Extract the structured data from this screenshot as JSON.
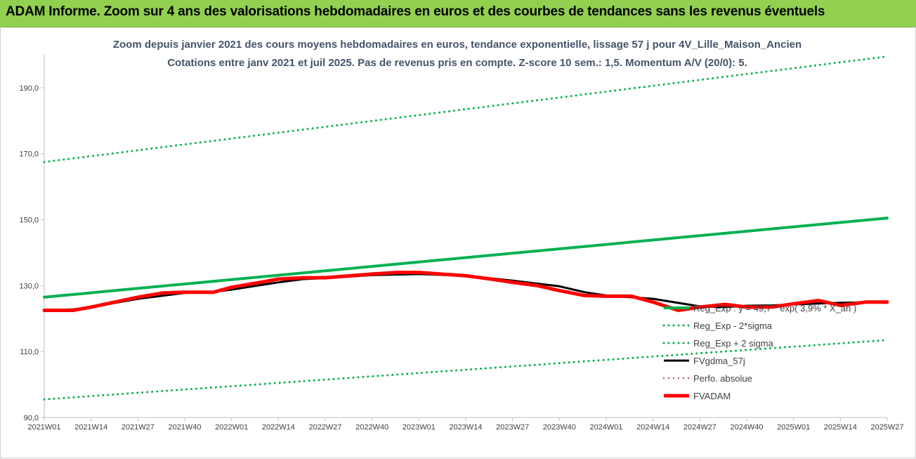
{
  "banner": {
    "title": "ADAM Informe. Zoom sur 4 ans des valorisations hebdomadaires en euros et des courbes de tendances sans les revenus éventuels"
  },
  "chart_data": {
    "type": "line",
    "title": "Zoom depuis janvier 2021 des cours moyens hebdomadaires en euros, tendance exponentielle, lissage 57 j pour 4V_Lille_Maison_Ancien",
    "subtitle": "Cotations entre janv 2021 et juil 2025. Pas de revenus pris en compte. Z-score 10 sem.: 1,5. Momentum A/V (20/0): 5.",
    "xlabel": "",
    "ylabel": "",
    "x_ticks": [
      "2021W01",
      "2021W14",
      "2021W27",
      "2021W40",
      "2022W01",
      "2022W14",
      "2022W27",
      "2022W40",
      "2023W01",
      "2023W14",
      "2023W27",
      "2023W40",
      "2024W01",
      "2024W14",
      "2024W27",
      "2024W40",
      "2025W01",
      "2025W14",
      "2025W27"
    ],
    "x_index_range": [
      0,
      234
    ],
    "ylim": [
      90,
      200
    ],
    "y_ticks": [
      "90,0",
      "110,0",
      "130,0",
      "150,0",
      "170,0",
      "190,0"
    ],
    "y_tick_values": [
      90,
      110,
      130,
      150,
      170,
      190
    ],
    "grid": false,
    "legend_position": "right",
    "series": [
      {
        "name": "Reg_Exp : y = 49,7 * exp( 3,9% * X_an )",
        "color": "#00b050",
        "style": "solid",
        "points": [
          [
            0,
            126.5
          ],
          [
            234,
            150.5
          ]
        ]
      },
      {
        "name": "Reg_Exp - 2*sigma",
        "color": "#00b050",
        "style": "dotted",
        "points": [
          [
            0,
            95.5
          ],
          [
            234,
            113.5
          ]
        ]
      },
      {
        "name": "Reg_Exp + 2 sigma",
        "color": "#00b050",
        "style": "dotted",
        "points": [
          [
            0,
            167.5
          ],
          [
            234,
            199.5
          ]
        ]
      },
      {
        "name": "FVgdma_57j",
        "color": "#000000",
        "style": "solid",
        "points": [
          [
            0,
            122.5
          ],
          [
            8,
            122.8
          ],
          [
            13,
            123.5
          ],
          [
            26,
            126
          ],
          [
            39,
            127.8
          ],
          [
            47,
            128.1
          ],
          [
            52,
            128.8
          ],
          [
            65,
            131
          ],
          [
            72,
            132
          ],
          [
            78,
            132.3
          ],
          [
            91,
            133.2
          ],
          [
            104,
            133.5
          ],
          [
            117,
            133
          ],
          [
            130,
            131.5
          ],
          [
            143,
            129.8
          ],
          [
            150,
            128
          ],
          [
            156,
            127
          ],
          [
            169,
            126
          ],
          [
            182,
            123.7
          ],
          [
            189,
            123.5
          ],
          [
            195,
            123.9
          ],
          [
            202,
            124
          ],
          [
            208,
            124.3
          ],
          [
            215,
            124.6
          ],
          [
            221,
            124.8
          ],
          [
            234,
            125
          ]
        ]
      },
      {
        "name": "Perfo. absolue",
        "color": "#c00000",
        "style": "dotted",
        "points": []
      },
      {
        "name": "FVADAM",
        "color": "#ff0000",
        "style": "solid",
        "points": [
          [
            0,
            122.5
          ],
          [
            8,
            122.5
          ],
          [
            13,
            123.5
          ],
          [
            26,
            126.5
          ],
          [
            33,
            127.8
          ],
          [
            39,
            128
          ],
          [
            47,
            128
          ],
          [
            52,
            129.5
          ],
          [
            60,
            131
          ],
          [
            65,
            132
          ],
          [
            72,
            132.4
          ],
          [
            78,
            132.4
          ],
          [
            91,
            133.5
          ],
          [
            98,
            134
          ],
          [
            104,
            134
          ],
          [
            110,
            133.5
          ],
          [
            117,
            133
          ],
          [
            124,
            132
          ],
          [
            130,
            131
          ],
          [
            137,
            130
          ],
          [
            143,
            128.5
          ],
          [
            150,
            127
          ],
          [
            156,
            126.8
          ],
          [
            163,
            126.8
          ],
          [
            169,
            125
          ],
          [
            176,
            122.5
          ],
          [
            182,
            123.5
          ],
          [
            189,
            124.3
          ],
          [
            195,
            123.5
          ],
          [
            202,
            123.5
          ],
          [
            208,
            124.5
          ],
          [
            215,
            125.5
          ],
          [
            221,
            124
          ],
          [
            228,
            125
          ],
          [
            234,
            125
          ]
        ]
      }
    ]
  }
}
